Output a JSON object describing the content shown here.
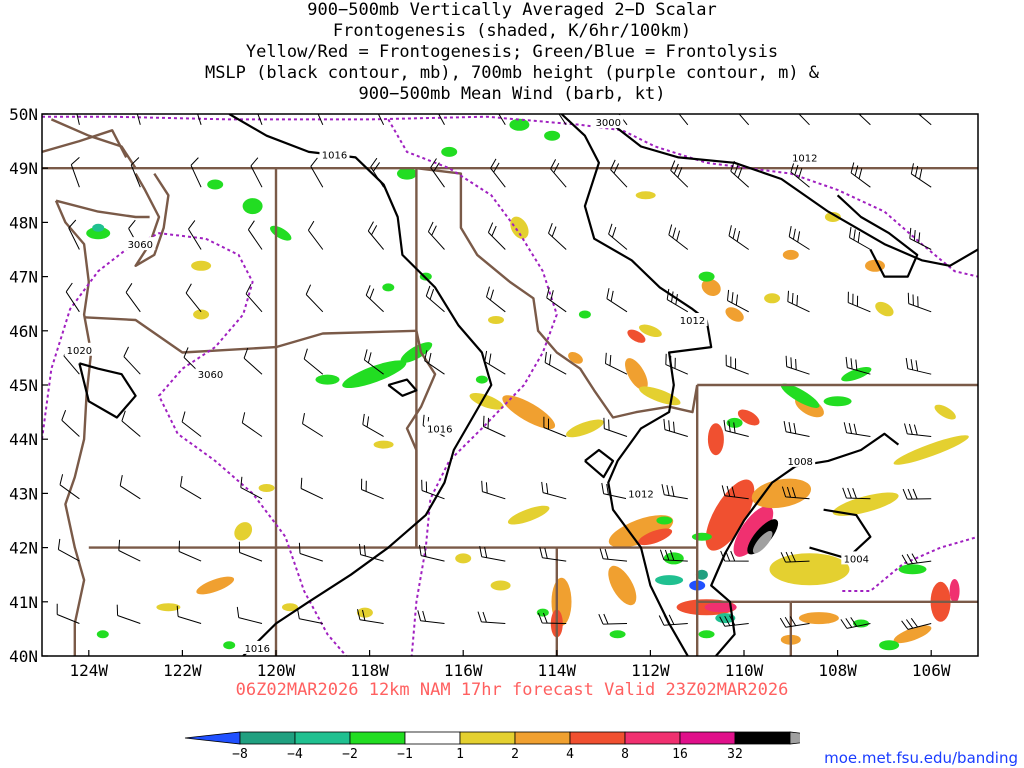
{
  "title_lines": [
    "900−500mb Vertically Averaged 2−D Scalar",
    "Frontogenesis (shaded, K/6hr/100km)",
    "Yellow/Red = Frontogenesis;  Green/Blue = Frontolysis",
    "MSLP (black contour, mb), 700mb height (purple contour, m) &",
    "900−500mb Mean Wind (barb, kt)"
  ],
  "valid_text": "06Z02MAR2026 12km NAM 17hr forecast Valid 23Z02MAR2026",
  "valid_color": "#ff6060",
  "credit_text": "moe.met.fsu.edu/banding",
  "credit_color": "#1a3cff",
  "map": {
    "lon_range": [
      -125,
      -105
    ],
    "lat_range": [
      40,
      50
    ],
    "lat_labels": [
      "40N",
      "41N",
      "42N",
      "43N",
      "44N",
      "45N",
      "46N",
      "47N",
      "48N",
      "49N",
      "50N"
    ],
    "lon_labels": [
      "124W",
      "122W",
      "120W",
      "118W",
      "116W",
      "114W",
      "112W",
      "110W",
      "108W",
      "106W"
    ],
    "lon_label_values": [
      -124,
      -122,
      -120,
      -118,
      -116,
      -114,
      -112,
      -110,
      -108,
      -106
    ],
    "border_color": "#7a5a48",
    "mslp_color": "#000000",
    "height_color": "#a020c0"
  },
  "contour_labels": [
    {
      "text": "3000",
      "lon": -112.9,
      "lat": 49.85,
      "kind": "height"
    },
    {
      "text": "1016",
      "lon": -118.75,
      "lat": 49.25,
      "kind": "mslp"
    },
    {
      "text": "1012",
      "lon": -108.7,
      "lat": 49.2,
      "kind": "mslp"
    },
    {
      "text": "3060",
      "lon": -122.9,
      "lat": 47.6,
      "kind": "height"
    },
    {
      "text": "1012",
      "lon": -111.1,
      "lat": 46.2,
      "kind": "mslp"
    },
    {
      "text": "1020",
      "lon": -124.2,
      "lat": 45.65,
      "kind": "mslp"
    },
    {
      "text": "3060",
      "lon": -121.4,
      "lat": 45.2,
      "kind": "height"
    },
    {
      "text": "1016",
      "lon": -116.5,
      "lat": 44.2,
      "kind": "mslp"
    },
    {
      "text": "1008",
      "lon": -108.8,
      "lat": 43.6,
      "kind": "mslp"
    },
    {
      "text": "1012",
      "lon": -112.2,
      "lat": 43.0,
      "kind": "mslp"
    },
    {
      "text": "1004",
      "lon": -107.6,
      "lat": 41.8,
      "kind": "mslp"
    },
    {
      "text": "1016",
      "lon": -120.4,
      "lat": 40.15,
      "kind": "mslp"
    }
  ],
  "colorbar": {
    "labels": [
      "−8",
      "−4",
      "−2",
      "−1",
      "1",
      "2",
      "4",
      "8",
      "16",
      "32"
    ],
    "colors": [
      "#2050ff",
      "#20a080",
      "#20c090",
      "#22dd22",
      "#ffffff",
      "#e4d030",
      "#f0a030",
      "#f05030",
      "#f03070",
      "#e0108a",
      "#000000",
      "#a0a0a0"
    ]
  }
}
